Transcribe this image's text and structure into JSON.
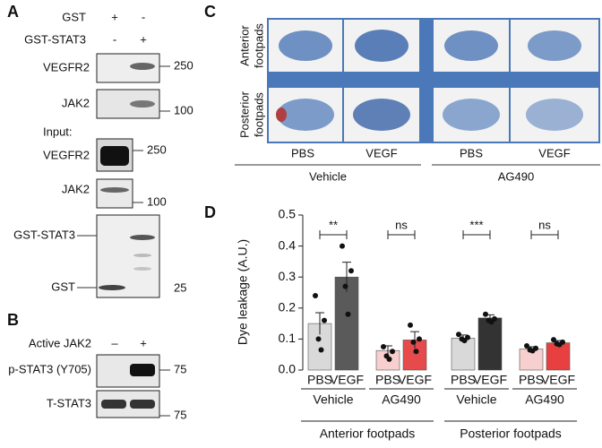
{
  "panel_a": {
    "label": "A",
    "conditions": [
      {
        "name": "GST",
        "signs": [
          "+",
          "-"
        ]
      },
      {
        "name": "GST-STAT3",
        "signs": [
          "-",
          "+"
        ]
      }
    ],
    "pulldown": [
      {
        "name": "VEGFR2",
        "marker": 250
      },
      {
        "name": "JAK2",
        "marker": 100
      }
    ],
    "input_label": "Input:",
    "input": [
      {
        "name": "VEGFR2",
        "marker": 250
      },
      {
        "name": "JAK2",
        "marker": 100
      }
    ],
    "gst_blot": {
      "upper": "GST-STAT3",
      "lower": "GST",
      "marker": 25
    }
  },
  "panel_b": {
    "label": "B",
    "condition": {
      "name": "Active JAK2",
      "signs": [
        "–",
        "+"
      ]
    },
    "blots": [
      {
        "name": "p-STAT3 (Y705)",
        "marker": 75
      },
      {
        "name": "T-STAT3",
        "marker": 75
      }
    ]
  },
  "panel_c": {
    "label": "C",
    "row_labels": [
      [
        "Anterior",
        "footpads"
      ],
      [
        "Posterior",
        "footpads"
      ]
    ],
    "columns": [
      "PBS",
      "VEGF",
      "PBS",
      "VEGF"
    ],
    "groups": [
      "Vehicle",
      "AG490"
    ]
  },
  "panel_d": {
    "label": "D",
    "chart_data": {
      "type": "bar",
      "y_label": "Dye leakage (A.U.)",
      "categories": [
        "PBS",
        "VEGF",
        "PBS",
        "VEGF",
        "PBS",
        "VEGF",
        "PBS",
        "VEGF"
      ],
      "values": [
        0.15,
        0.3,
        0.063,
        0.097,
        0.103,
        0.168,
        0.068,
        0.088
      ],
      "errors": [
        0.035,
        0.048,
        0.015,
        0.027,
        0.01,
        0.01,
        0.007,
        0.007
      ],
      "points": [
        [
          0.24,
          0.16,
          0.1,
          0.065
        ],
        [
          0.4,
          0.32,
          0.27,
          0.18
        ],
        [
          0.075,
          0.06,
          0.045,
          0.035
        ],
        [
          0.145,
          0.1,
          0.09,
          0.06
        ],
        [
          0.115,
          0.105,
          0.1,
          0.095
        ],
        [
          0.18,
          0.165,
          0.16,
          0.155
        ],
        [
          0.078,
          0.07,
          0.065,
          0.062
        ],
        [
          0.098,
          0.09,
          0.085,
          0.082
        ]
      ],
      "colors": [
        "#d9d9d9",
        "#5a5a5a",
        "#f7cfcf",
        "#e74a4a",
        "#d9d9d9",
        "#333333",
        "#f7cfcf",
        "#e84040"
      ],
      "significance": [
        "**",
        "ns",
        "***",
        "ns"
      ],
      "groups": [
        "Vehicle",
        "AG490",
        "Vehicle",
        "AG490"
      ],
      "supergroups": [
        "Anterior footpads",
        "Posterior footpads"
      ],
      "ylim": [
        0,
        0.5
      ],
      "yticks": [
        {
          "value": 0,
          "label": "0.0"
        },
        0.1,
        0.2,
        0.3,
        0.4,
        0.5
      ]
    }
  }
}
